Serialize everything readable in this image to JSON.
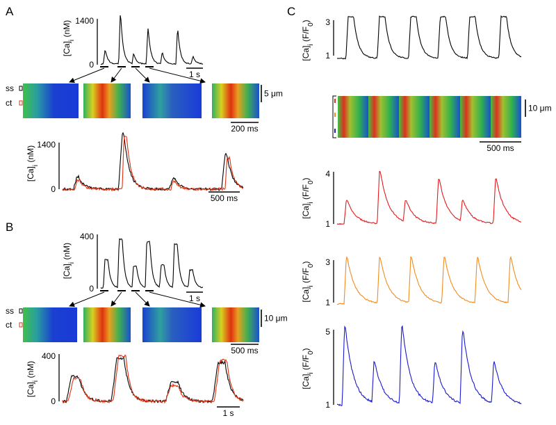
{
  "A": {
    "label": "A",
    "top": {
      "ylabel": [
        {
          "text": "[Ca]"
        },
        {
          "text": "i",
          "sub": true
        },
        {
          "text": " (nM)"
        }
      ],
      "ticks": [
        1400,
        0
      ],
      "scale": "1 s"
    },
    "scan": {
      "rows": [
        "ss",
        "ct"
      ],
      "scale_y": "5 μm",
      "scale_x": "200 ms"
    },
    "bottom": {
      "ylabel": [
        {
          "text": "[Ca]"
        },
        {
          "text": "i",
          "sub": true
        },
        {
          "text": " (nM)"
        }
      ],
      "ticks": [
        1400,
        0
      ],
      "scale": "500 ms"
    }
  },
  "B": {
    "label": "B",
    "top": {
      "ylabel": [
        {
          "text": "[Ca]"
        },
        {
          "text": "i",
          "sub": true
        },
        {
          "text": " (nM)"
        }
      ],
      "ticks": [
        400,
        0
      ],
      "scale": "1 s"
    },
    "scan": {
      "rows": [
        "ss",
        "ct"
      ],
      "scale_y": "10 μm",
      "scale_x": "500 ms"
    },
    "bottom": {
      "ylabel": [
        {
          "text": "[Ca]"
        },
        {
          "text": "i",
          "sub": true
        },
        {
          "text": " (nM)"
        }
      ],
      "ticks": [
        400,
        0
      ],
      "scale": "1 s"
    }
  },
  "C": {
    "label": "C",
    "traces": [
      {
        "ylabel": [
          {
            "text": "[Ca]"
          },
          {
            "text": "i",
            "sub": true
          },
          {
            "text": " (F/F"
          },
          {
            "text": "0",
            "sub": true
          },
          {
            "text": ")"
          }
        ],
        "ticks": [
          3,
          1
        ],
        "color": "#000000"
      },
      {
        "ylabel": [
          {
            "text": "[Ca]"
          },
          {
            "text": "i",
            "sub": true
          },
          {
            "text": " (F/F"
          },
          {
            "text": "0",
            "sub": true
          },
          {
            "text": ")"
          }
        ],
        "ticks": [
          4,
          1
        ],
        "color": "#e31a1c"
      },
      {
        "ylabel": [
          {
            "text": "[Ca]"
          },
          {
            "text": "i",
            "sub": true
          },
          {
            "text": " (F/F"
          },
          {
            "text": "0",
            "sub": true
          },
          {
            "text": ")"
          }
        ],
        "ticks": [
          3,
          1
        ],
        "color": "#f08c1e"
      },
      {
        "ylabel": [
          {
            "text": "[Ca]"
          },
          {
            "text": "i",
            "sub": true
          },
          {
            "text": " (F/F"
          },
          {
            "text": "0",
            "sub": true
          },
          {
            "text": ")"
          }
        ],
        "ticks": [
          5,
          1
        ],
        "color": "#1a1ad0"
      }
    ],
    "scan": {
      "scale_y": "10 μm",
      "scale_x": "500 ms"
    }
  }
}
